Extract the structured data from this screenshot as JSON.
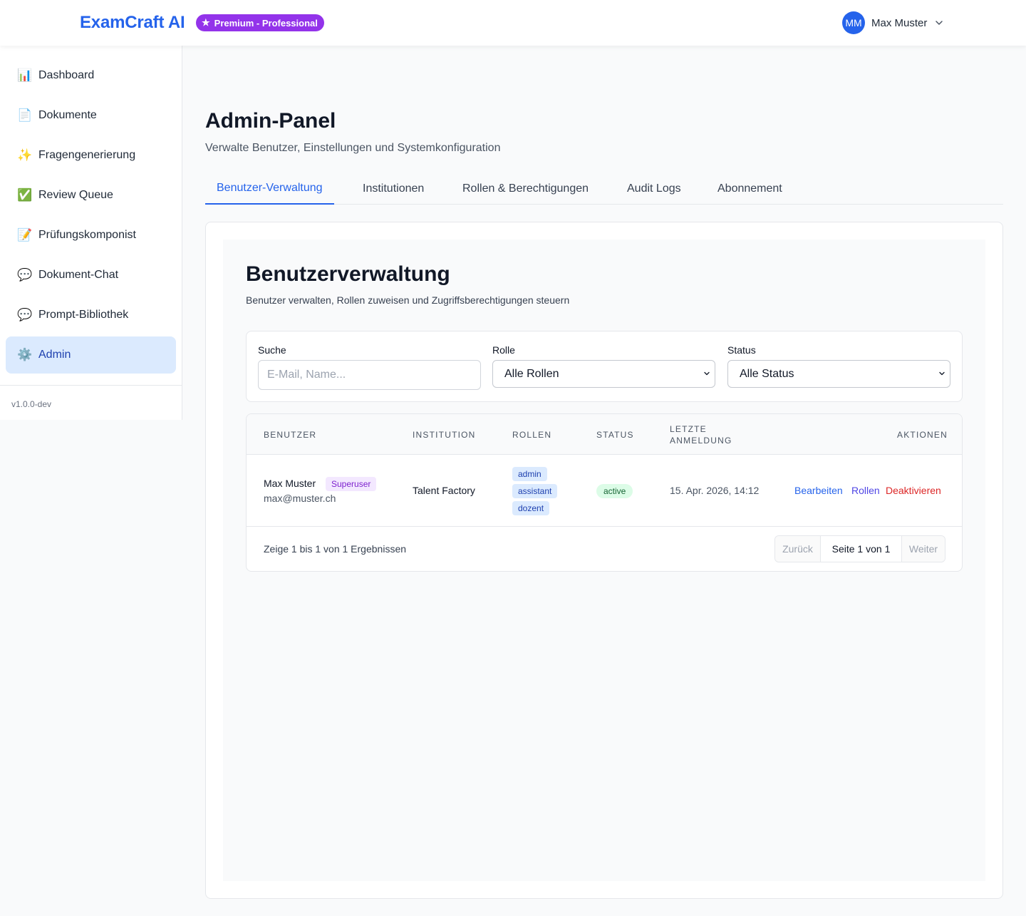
{
  "header": {
    "brand": "ExamCraft AI",
    "plan_badge": "Premium - Professional",
    "plan_icon": "star-icon",
    "user": {
      "initials": "MM",
      "name": "Max Muster"
    }
  },
  "sidebar": {
    "items": [
      {
        "icon": "📊",
        "icon_name": "bar-chart-icon",
        "label": "Dashboard"
      },
      {
        "icon": "📄",
        "icon_name": "document-icon",
        "label": "Dokumente"
      },
      {
        "icon": "✨",
        "icon_name": "sparkles-icon",
        "label": "Fragengenerierung"
      },
      {
        "icon": "✅",
        "icon_name": "check-mark-icon",
        "label": "Review Queue"
      },
      {
        "icon": "📝",
        "icon_name": "memo-icon",
        "label": "Prüfungskomponist"
      },
      {
        "icon": "💬",
        "icon_name": "speech-bubble-icon",
        "label": "Dokument-Chat"
      },
      {
        "icon": "💬",
        "icon_name": "speech-bubble-icon",
        "label": "Prompt-Bibliothek"
      },
      {
        "icon": "⚙️",
        "icon_name": "gear-icon",
        "label": "Admin",
        "active": true
      }
    ],
    "version": "v1.0.0-dev"
  },
  "page": {
    "title": "Admin-Panel",
    "subtitle": "Verwalte Benutzer, Einstellungen und Systemkonfiguration",
    "tabs": [
      {
        "label": "Benutzer-Verwaltung",
        "active": true
      },
      {
        "label": "Institutionen"
      },
      {
        "label": "Rollen & Berechtigungen"
      },
      {
        "label": "Audit Logs"
      },
      {
        "label": "Abonnement"
      }
    ]
  },
  "users_section": {
    "title": "Benutzerverwaltung",
    "subtitle": "Benutzer verwalten, Rollen zuweisen und Zugriffsberechtigungen steuern",
    "filters": {
      "search_label": "Suche",
      "search_placeholder": "E-Mail, Name...",
      "search_value": "",
      "role_label": "Rolle",
      "role_value": "Alle Rollen",
      "status_label": "Status",
      "status_value": "Alle Status"
    },
    "table": {
      "columns": {
        "user": "Benutzer",
        "institution": "Institution",
        "roles": "Rollen",
        "status": "Status",
        "last_login_line1": "Letzte",
        "last_login_line2": "Anmeldung",
        "actions": "Aktionen"
      },
      "rows": [
        {
          "name": "Max Muster",
          "badge": "Superuser",
          "email": "max@muster.ch",
          "institution": "Talent Factory",
          "roles": [
            "admin",
            "assistant",
            "dozent"
          ],
          "status": "active",
          "last_login": "15. Apr. 2026, 14:12",
          "actions": {
            "edit": "Bearbeiten",
            "roles": "Rollen",
            "deactivate": "Deaktivieren"
          }
        }
      ]
    },
    "pagination": {
      "summary": "Zeige 1 bis 1 von 1 Ergebnissen",
      "prev": "Zurück",
      "page": "Seite 1 von 1",
      "next": "Weiter"
    }
  },
  "colors": {
    "accent": "#2563eb",
    "premium": "#9333ea",
    "danger": "#dc2626",
    "roles_link": "#4f46e5"
  }
}
